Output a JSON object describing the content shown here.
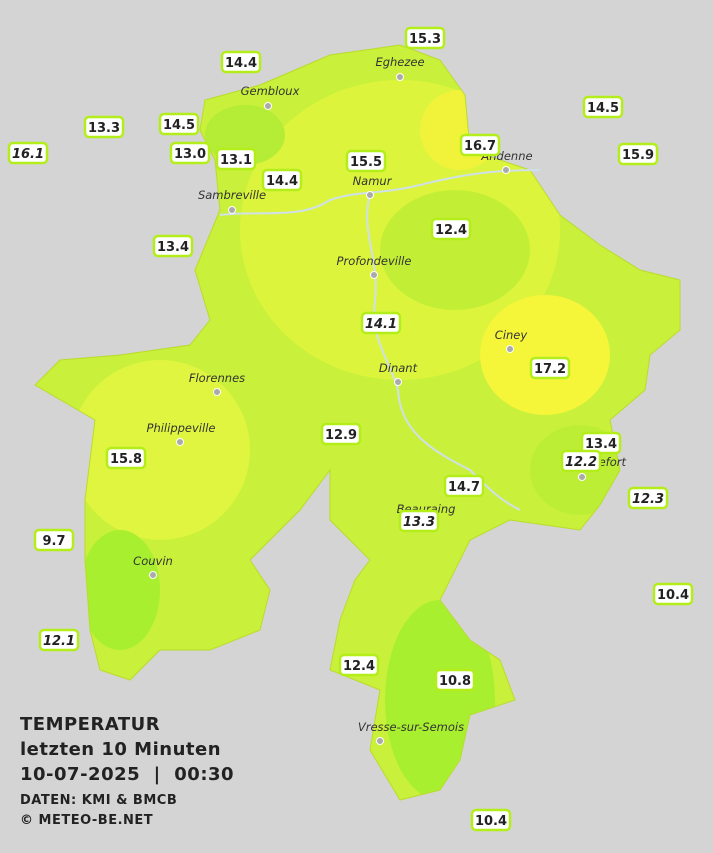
{
  "map": {
    "title": "TEMPERATUR",
    "subtitle": "letzten 10 Minuten",
    "datetime": "10-07-2025  |  00:30",
    "source": "DATEN: KMI & BMCB",
    "copyright": "© METEO-BE.NET",
    "cities": [
      "Eghezee",
      "Gembloux",
      "Andenne",
      "Namur",
      "Sambreville",
      "Profondeville",
      "Ciney",
      "Dinant",
      "Florennes",
      "Philippeville",
      "Rochefort",
      "Beauraing",
      "Couvin",
      "Vresse-sur-Semois"
    ],
    "stations": [
      "15.3",
      "14.4",
      "14.5",
      "13.3",
      "14.5",
      "16.1",
      "13.0",
      "13.1",
      "16.7",
      "15.9",
      "15.5",
      "14.4",
      "12.4",
      "13.4",
      "14.1",
      "17.2",
      "12.9",
      "13.4",
      "12.2",
      "15.8",
      "14.7",
      "12.3",
      "13.3",
      "9.7",
      "10.4",
      "12.1",
      "12.4",
      "10.8",
      "10.4"
    ]
  }
}
